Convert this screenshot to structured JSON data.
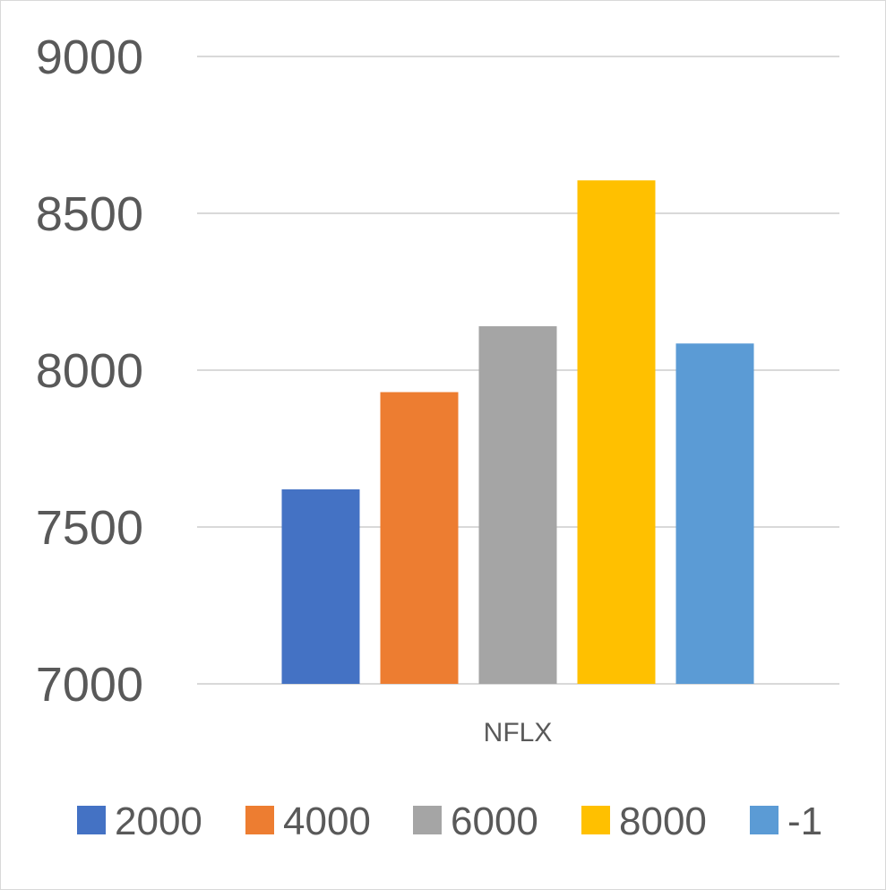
{
  "chart_data": {
    "type": "bar",
    "categories": [
      "NFLX"
    ],
    "series": [
      {
        "name": "2000",
        "values": [
          7620
        ],
        "color": "#4472C4"
      },
      {
        "name": "4000",
        "values": [
          7930
        ],
        "color": "#ED7D31"
      },
      {
        "name": "6000",
        "values": [
          8140
        ],
        "color": "#A5A5A5"
      },
      {
        "name": "8000",
        "values": [
          8605
        ],
        "color": "#FFC000"
      },
      {
        "name": "-1",
        "values": [
          8085
        ],
        "color": "#5B9BD5"
      }
    ],
    "ylim": [
      7000,
      9000
    ],
    "yticks": [
      7000,
      7500,
      8000,
      8500,
      9000
    ],
    "grid": true,
    "legend": "bottom"
  }
}
